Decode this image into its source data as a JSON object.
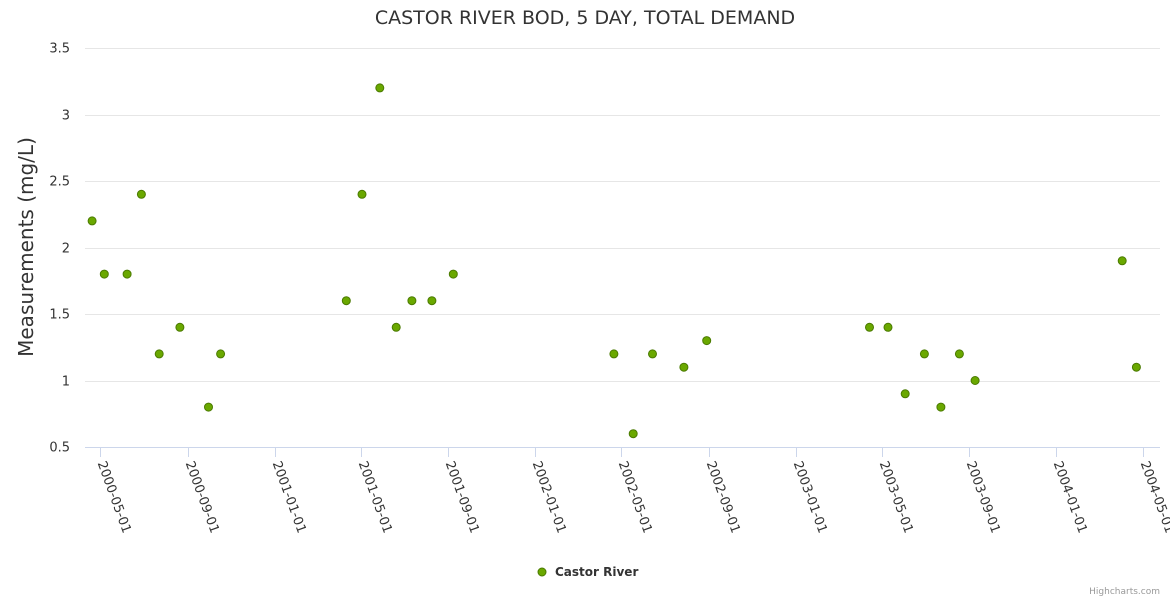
{
  "chart_data": {
    "type": "scatter",
    "title": "CASTOR RIVER BOD, 5 DAY, TOTAL DEMAND",
    "xlabel": "",
    "ylabel": "Measurements (mg/L)",
    "ylim": [
      0.5,
      3.5
    ],
    "yticks": [
      "0.5",
      "1",
      "1.5",
      "2",
      "2.5",
      "3",
      "3.5"
    ],
    "xlim": [
      "2000-04-10",
      "2004-05-25"
    ],
    "xticks": [
      "2000-05-01",
      "2000-09-01",
      "2001-01-01",
      "2001-05-01",
      "2001-09-01",
      "2002-01-01",
      "2002-05-01",
      "2002-09-01",
      "2003-01-01",
      "2003-05-01",
      "2003-09-01",
      "2004-01-01",
      "2004-05-01"
    ],
    "grid": true,
    "legend_position": "bottom-center",
    "series": [
      {
        "name": "Castor River",
        "color": "#6aa800",
        "border_color": "#4a7a00",
        "points": [
          {
            "x": "2000-04-20",
            "y": 2.2
          },
          {
            "x": "2000-05-07",
            "y": 1.8
          },
          {
            "x": "2000-06-08",
            "y": 1.8
          },
          {
            "x": "2000-06-28",
            "y": 2.4
          },
          {
            "x": "2000-07-23",
            "y": 1.2
          },
          {
            "x": "2000-08-21",
            "y": 1.4
          },
          {
            "x": "2000-09-30",
            "y": 0.8
          },
          {
            "x": "2000-10-17",
            "y": 1.2
          },
          {
            "x": "2001-04-11",
            "y": 1.6
          },
          {
            "x": "2001-05-03",
            "y": 2.4
          },
          {
            "x": "2001-05-28",
            "y": 3.2
          },
          {
            "x": "2001-06-20",
            "y": 1.4
          },
          {
            "x": "2001-07-12",
            "y": 1.6
          },
          {
            "x": "2001-08-09",
            "y": 1.6
          },
          {
            "x": "2001-09-08",
            "y": 1.8
          },
          {
            "x": "2002-04-21",
            "y": 1.2
          },
          {
            "x": "2002-05-18",
            "y": 0.6
          },
          {
            "x": "2002-06-14",
            "y": 1.2
          },
          {
            "x": "2002-07-28",
            "y": 1.1
          },
          {
            "x": "2002-08-29",
            "y": 1.3
          },
          {
            "x": "2003-04-14",
            "y": 1.4
          },
          {
            "x": "2003-05-10",
            "y": 1.4
          },
          {
            "x": "2003-06-03",
            "y": 0.9
          },
          {
            "x": "2003-06-30",
            "y": 1.2
          },
          {
            "x": "2003-07-23",
            "y": 0.8
          },
          {
            "x": "2003-08-18",
            "y": 1.2
          },
          {
            "x": "2003-09-09",
            "y": 1.0
          },
          {
            "x": "2004-04-02",
            "y": 1.9
          },
          {
            "x": "2004-04-22",
            "y": 1.1
          }
        ]
      }
    ]
  },
  "credits": "Highcharts.com"
}
